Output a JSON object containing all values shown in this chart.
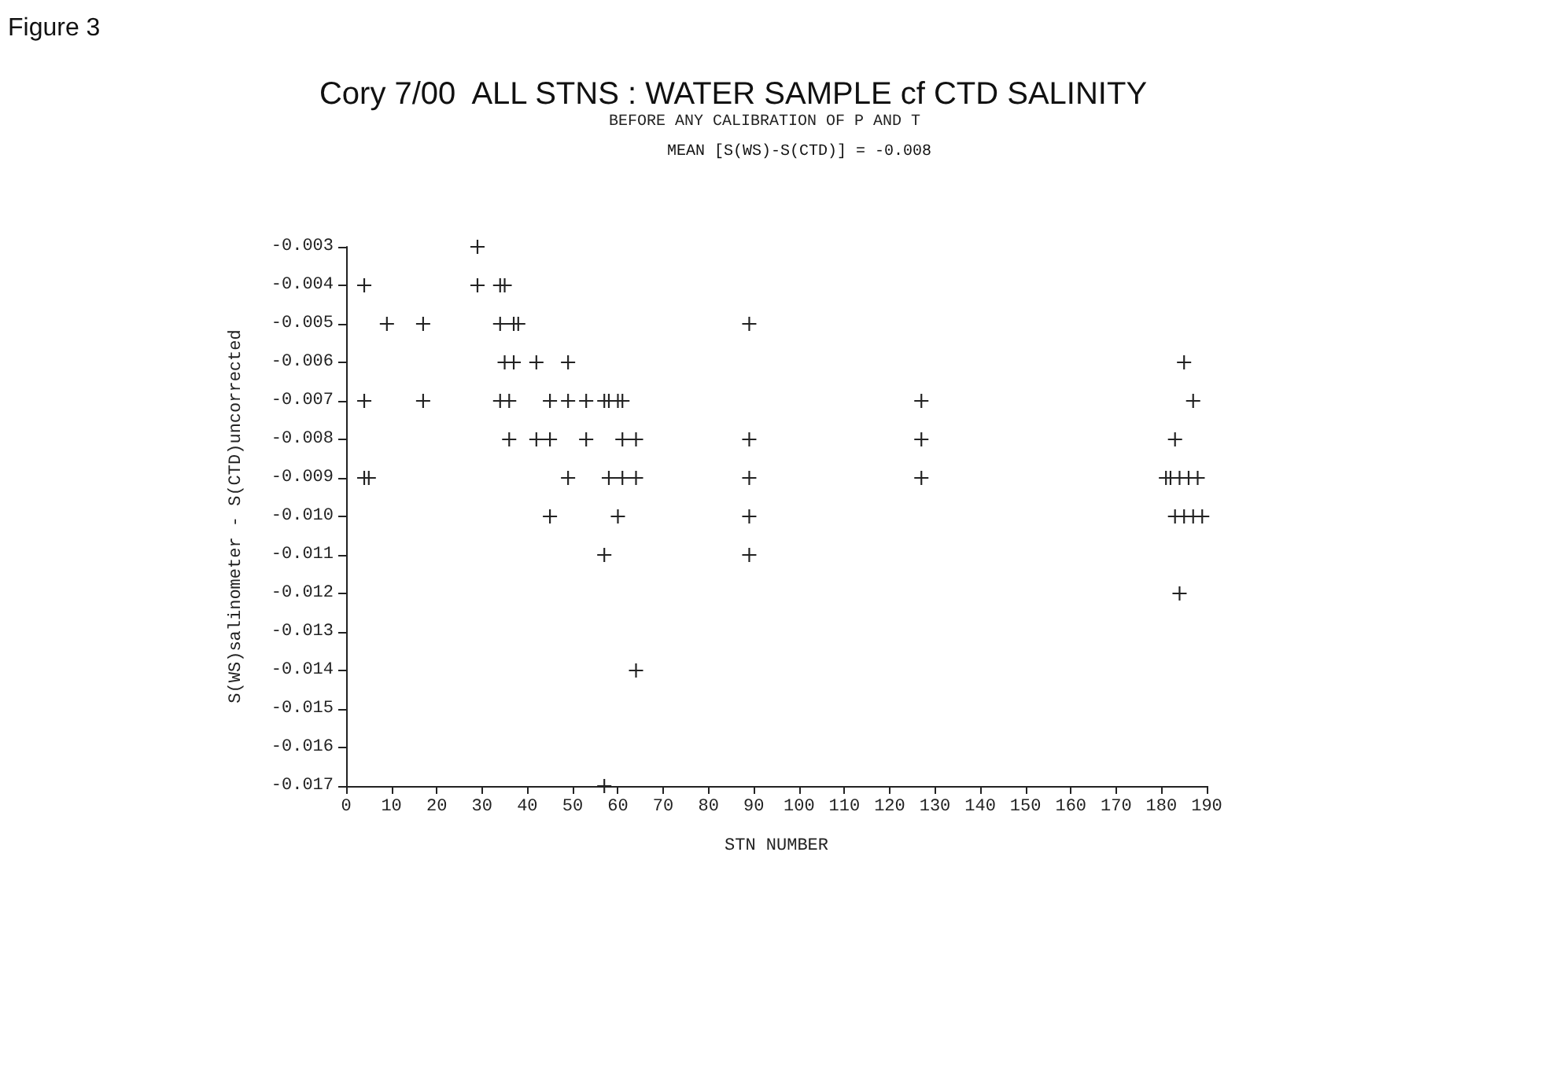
{
  "chart_data": {
    "type": "scatter",
    "title": "Cory 7/00  ALL STNS : WATER SAMPLE cf CTD SALINITY",
    "subtitle": "BEFORE ANY CALIBRATION OF P AND T",
    "annotations": [
      "Figure 3",
      "MEAN [S(WS)-S(CTD)] = -0.008"
    ],
    "xlabel": "STN NUMBER",
    "ylabel": "S(WS)salinometer - S(CTD)uncorrected",
    "x": [
      4,
      4,
      4,
      5,
      9,
      17,
      17,
      29,
      29,
      34,
      35,
      34,
      37,
      38,
      35,
      37,
      42,
      49,
      34,
      36,
      45,
      49,
      53,
      57,
      58,
      60,
      61,
      36,
      42,
      45,
      53,
      61,
      64,
      49,
      58,
      61,
      64,
      45,
      60,
      57,
      64,
      57,
      89,
      89,
      89,
      89,
      89,
      127,
      127,
      127,
      185,
      187,
      183,
      181,
      182,
      184,
      186,
      188,
      183,
      185,
      187,
      189,
      184
    ],
    "values": [
      -0.004,
      -0.007,
      -0.009,
      -0.009,
      -0.005,
      -0.005,
      -0.007,
      -0.003,
      -0.004,
      -0.004,
      -0.004,
      -0.005,
      -0.005,
      -0.005,
      -0.006,
      -0.006,
      -0.006,
      -0.006,
      -0.007,
      -0.007,
      -0.007,
      -0.007,
      -0.007,
      -0.007,
      -0.007,
      -0.007,
      -0.007,
      -0.008,
      -0.008,
      -0.008,
      -0.008,
      -0.008,
      -0.008,
      -0.009,
      -0.009,
      -0.009,
      -0.009,
      -0.01,
      -0.01,
      -0.011,
      -0.014,
      -0.017,
      -0.005,
      -0.008,
      -0.009,
      -0.01,
      -0.011,
      -0.007,
      -0.008,
      -0.009,
      -0.006,
      -0.007,
      -0.008,
      -0.009,
      -0.009,
      -0.009,
      -0.009,
      -0.009,
      -0.01,
      -0.01,
      -0.01,
      -0.01,
      -0.012
    ],
    "color": "#222222",
    "marker": "cross",
    "xlim": [
      0,
      190
    ],
    "xticks": [
      0,
      10,
      20,
      30,
      40,
      50,
      60,
      70,
      80,
      90,
      100,
      110,
      120,
      130,
      140,
      150,
      160,
      170,
      180,
      190
    ],
    "ylim": [
      -0.017,
      -0.003
    ],
    "yticks": [
      -0.017,
      -0.016,
      -0.015,
      -0.014,
      -0.013,
      -0.012,
      -0.011,
      {
        "value": -0.01,
        "label": "-0.010"
      },
      -0.009,
      -0.008,
      -0.007,
      -0.006,
      -0.005,
      -0.004,
      -0.003
    ]
  }
}
